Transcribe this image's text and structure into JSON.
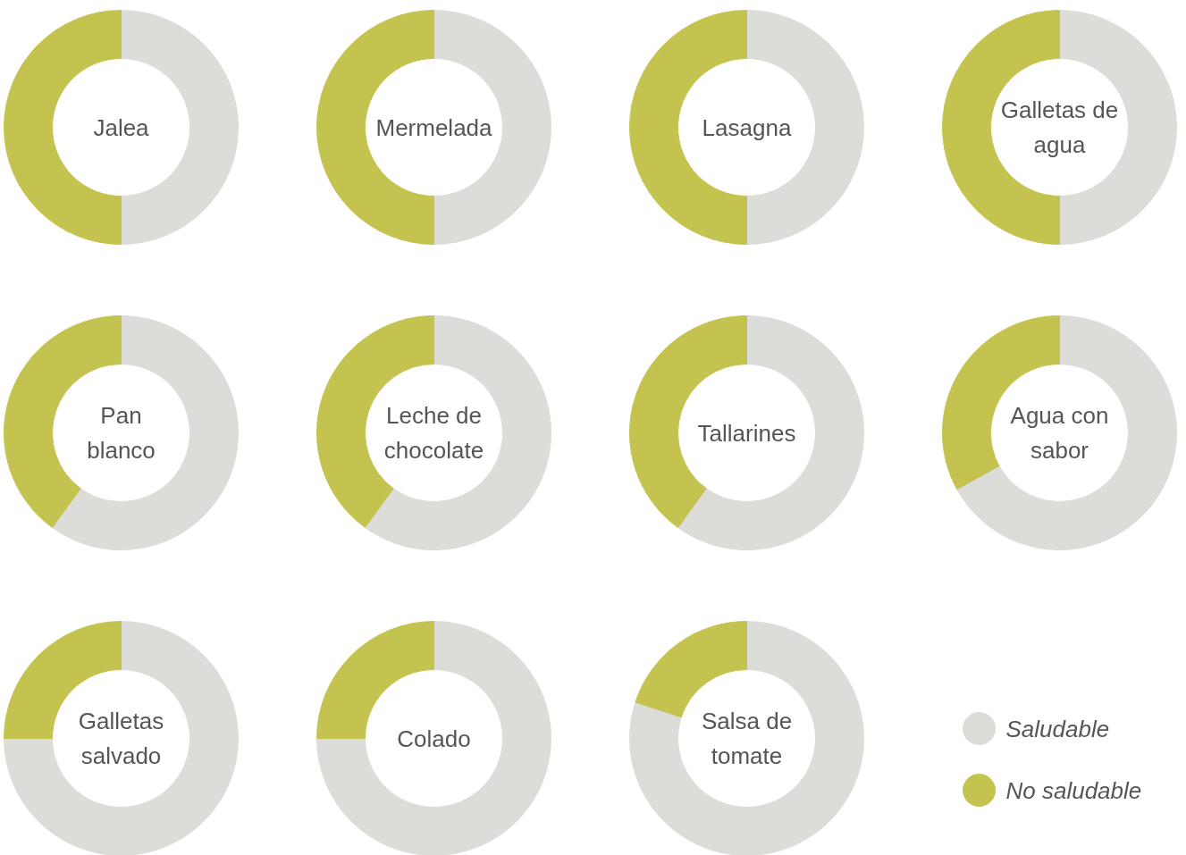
{
  "chart_data": {
    "type": "donut",
    "categories": [
      "Saludable",
      "No saludable"
    ],
    "colors": [
      "#dcdcd9",
      "#c4c350"
    ],
    "legend": "bottom right",
    "series": [
      {
        "name": "Jalea",
        "values": [
          50,
          50
        ]
      },
      {
        "name": "Mermelada",
        "values": [
          50,
          50
        ]
      },
      {
        "name": "Lasagna",
        "values": [
          50,
          50
        ]
      },
      {
        "name": "Galletas de\nagua",
        "values": [
          50,
          50
        ]
      },
      {
        "name": "Pan\nblanco",
        "values": [
          60,
          40
        ]
      },
      {
        "name": "Leche de\nchocolate",
        "values": [
          60,
          40
        ]
      },
      {
        "name": "Tallarines",
        "values": [
          60,
          40
        ]
      },
      {
        "name": "Agua con\nsabor",
        "values": [
          67,
          33
        ]
      },
      {
        "name": "Galletas\nsalvado",
        "values": [
          75,
          25
        ]
      },
      {
        "name": "Colado",
        "values": [
          75,
          25
        ]
      },
      {
        "name": "Salsa de\ntomate",
        "values": [
          80,
          20
        ]
      }
    ]
  }
}
